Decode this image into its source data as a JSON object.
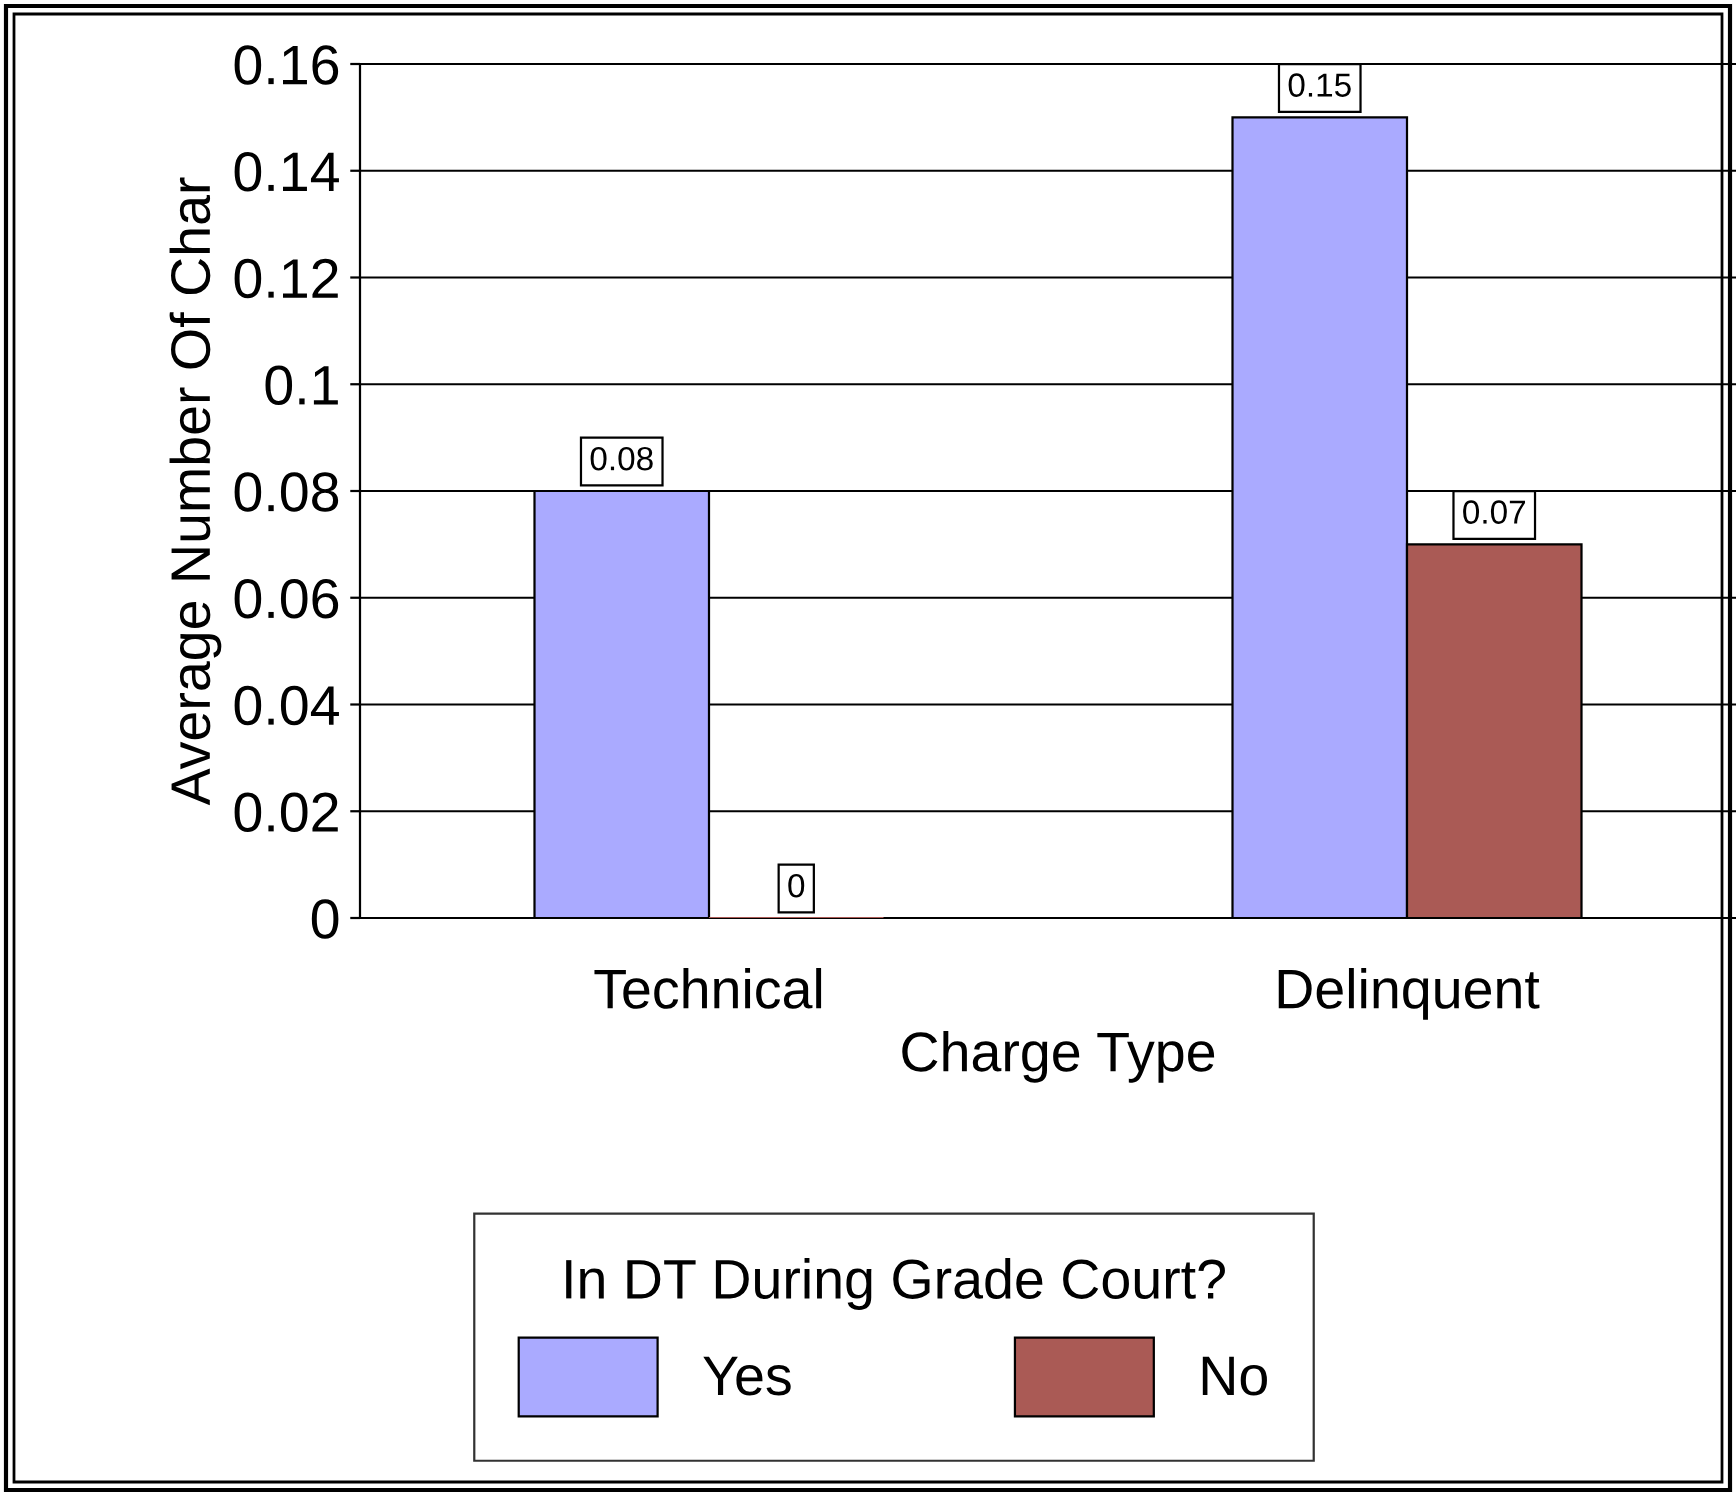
{
  "chart_data": {
    "type": "bar",
    "xlabel": "Charge Type",
    "ylabel": "Average Number Of Char",
    "legend_title": "In DT During Grade Court?",
    "categories": [
      "Technical",
      "Delinquent"
    ],
    "series": [
      {
        "name": "Yes",
        "color": "#aaaaff",
        "values": [
          0.08,
          0.15
        ]
      },
      {
        "name": "No",
        "color": "#aa5a55",
        "values": [
          0,
          0.07
        ]
      }
    ],
    "ylim": [
      0,
      0.16
    ],
    "yticks": [
      0,
      0.02,
      0.04,
      0.06,
      0.08,
      0.1,
      0.12,
      0.14,
      0.16
    ],
    "grid": "y",
    "legend": "bottom",
    "data_labels": true
  }
}
